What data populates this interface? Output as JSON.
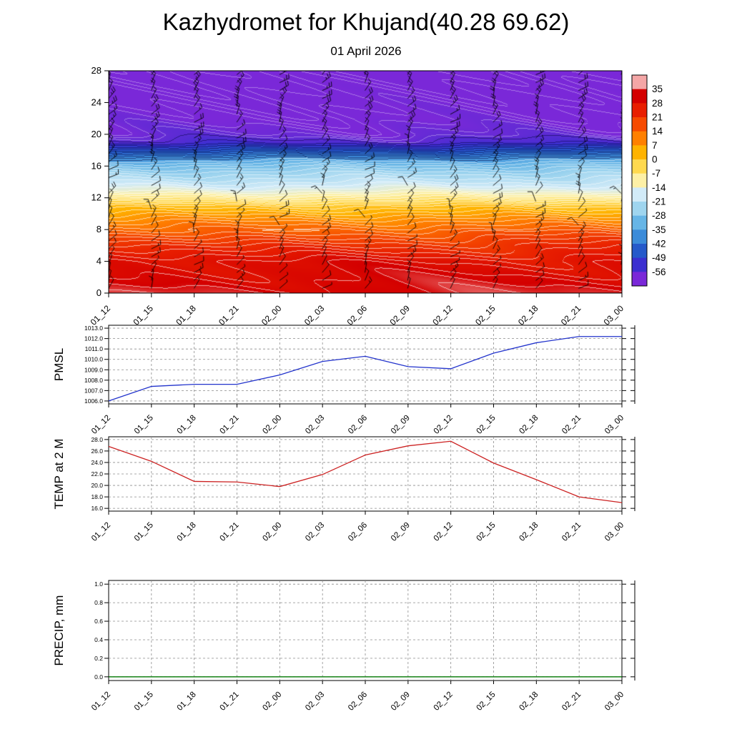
{
  "title": "Kazhydromet for Khujand(40.28 69.62)",
  "subtitle": "01 April 2026",
  "time_labels": [
    "01_12",
    "01_15",
    "01_18",
    "01_21",
    "02_00",
    "02_03",
    "02_06",
    "02_09",
    "02_12",
    "02_15",
    "02_18",
    "02_21",
    "03_00"
  ],
  "chart_data": [
    {
      "type": "heatmap",
      "name": "temp-wind-cross-section",
      "units": "C",
      "ylim": [
        0,
        28
      ],
      "yticks": [
        0,
        4,
        8,
        12,
        16,
        20,
        24,
        28
      ],
      "height_temp_profile": [
        [
          0,
          32.5
        ],
        [
          2,
          30
        ],
        [
          4,
          28
        ],
        [
          5,
          25
        ],
        [
          6,
          22
        ],
        [
          7,
          18
        ],
        [
          8,
          14
        ],
        [
          9,
          10
        ],
        [
          10,
          5
        ],
        [
          11,
          0
        ],
        [
          12,
          -8
        ],
        [
          13,
          -15
        ],
        [
          14,
          -20
        ],
        [
          15,
          -24
        ],
        [
          16,
          -29
        ],
        [
          17,
          -36
        ],
        [
          18,
          -46
        ],
        [
          19,
          -55
        ],
        [
          20,
          -58
        ],
        [
          22,
          -60
        ],
        [
          28,
          -62
        ]
      ],
      "wind_levels_h_kt": [
        [
          1,
          8
        ],
        [
          6,
          10
        ],
        [
          10,
          12
        ],
        [
          14,
          13
        ],
        [
          18,
          15
        ],
        [
          22,
          19
        ],
        [
          27,
          23
        ]
      ],
      "colorbar": {
        "ticks": [
          35,
          28,
          21,
          14,
          7,
          0,
          -7,
          -14,
          -21,
          -28,
          -35,
          -42,
          -49,
          -56
        ],
        "colors": [
          "#f4a6a6",
          "#d40000",
          "#e81e00",
          "#f64a00",
          "#ff8000",
          "#ffb300",
          "#ffd94f",
          "#fdf0a6",
          "#d2ebf8",
          "#9fd5ef",
          "#66b5e6",
          "#3b8bd9",
          "#2559ca",
          "#3b2fd0",
          "#7a28d8"
        ]
      }
    },
    {
      "type": "line",
      "name": "pmsl",
      "ylabel": "PMSL",
      "color": "#2233cc",
      "yticks": [
        1006,
        1007,
        1008,
        1009,
        1010,
        1011,
        1012,
        1013
      ],
      "values": [
        1006.0,
        1007.4,
        1007.6,
        1007.6,
        1008.5,
        1009.8,
        1010.3,
        1009.3,
        1009.1,
        1010.6,
        1011.6,
        1012.2,
        1012.2
      ]
    },
    {
      "type": "line",
      "name": "temp-2m",
      "ylabel": "TEMP at 2 M",
      "color": "#cc2222",
      "yticks": [
        16,
        18,
        20,
        22,
        24,
        26,
        28
      ],
      "values": [
        26.8,
        24.2,
        20.7,
        20.6,
        19.8,
        21.9,
        25.3,
        26.9,
        27.7,
        23.9,
        21.0,
        18.0,
        17.0
      ]
    },
    {
      "type": "line",
      "name": "precip",
      "ylabel": "PRECIP, mm",
      "color": "#007700",
      "yticks": [
        0.0,
        0.2,
        0.4,
        0.6,
        0.8,
        1.0
      ],
      "values": [
        0,
        0,
        0,
        0,
        0,
        0,
        0,
        0,
        0,
        0,
        0,
        0,
        0
      ]
    }
  ]
}
